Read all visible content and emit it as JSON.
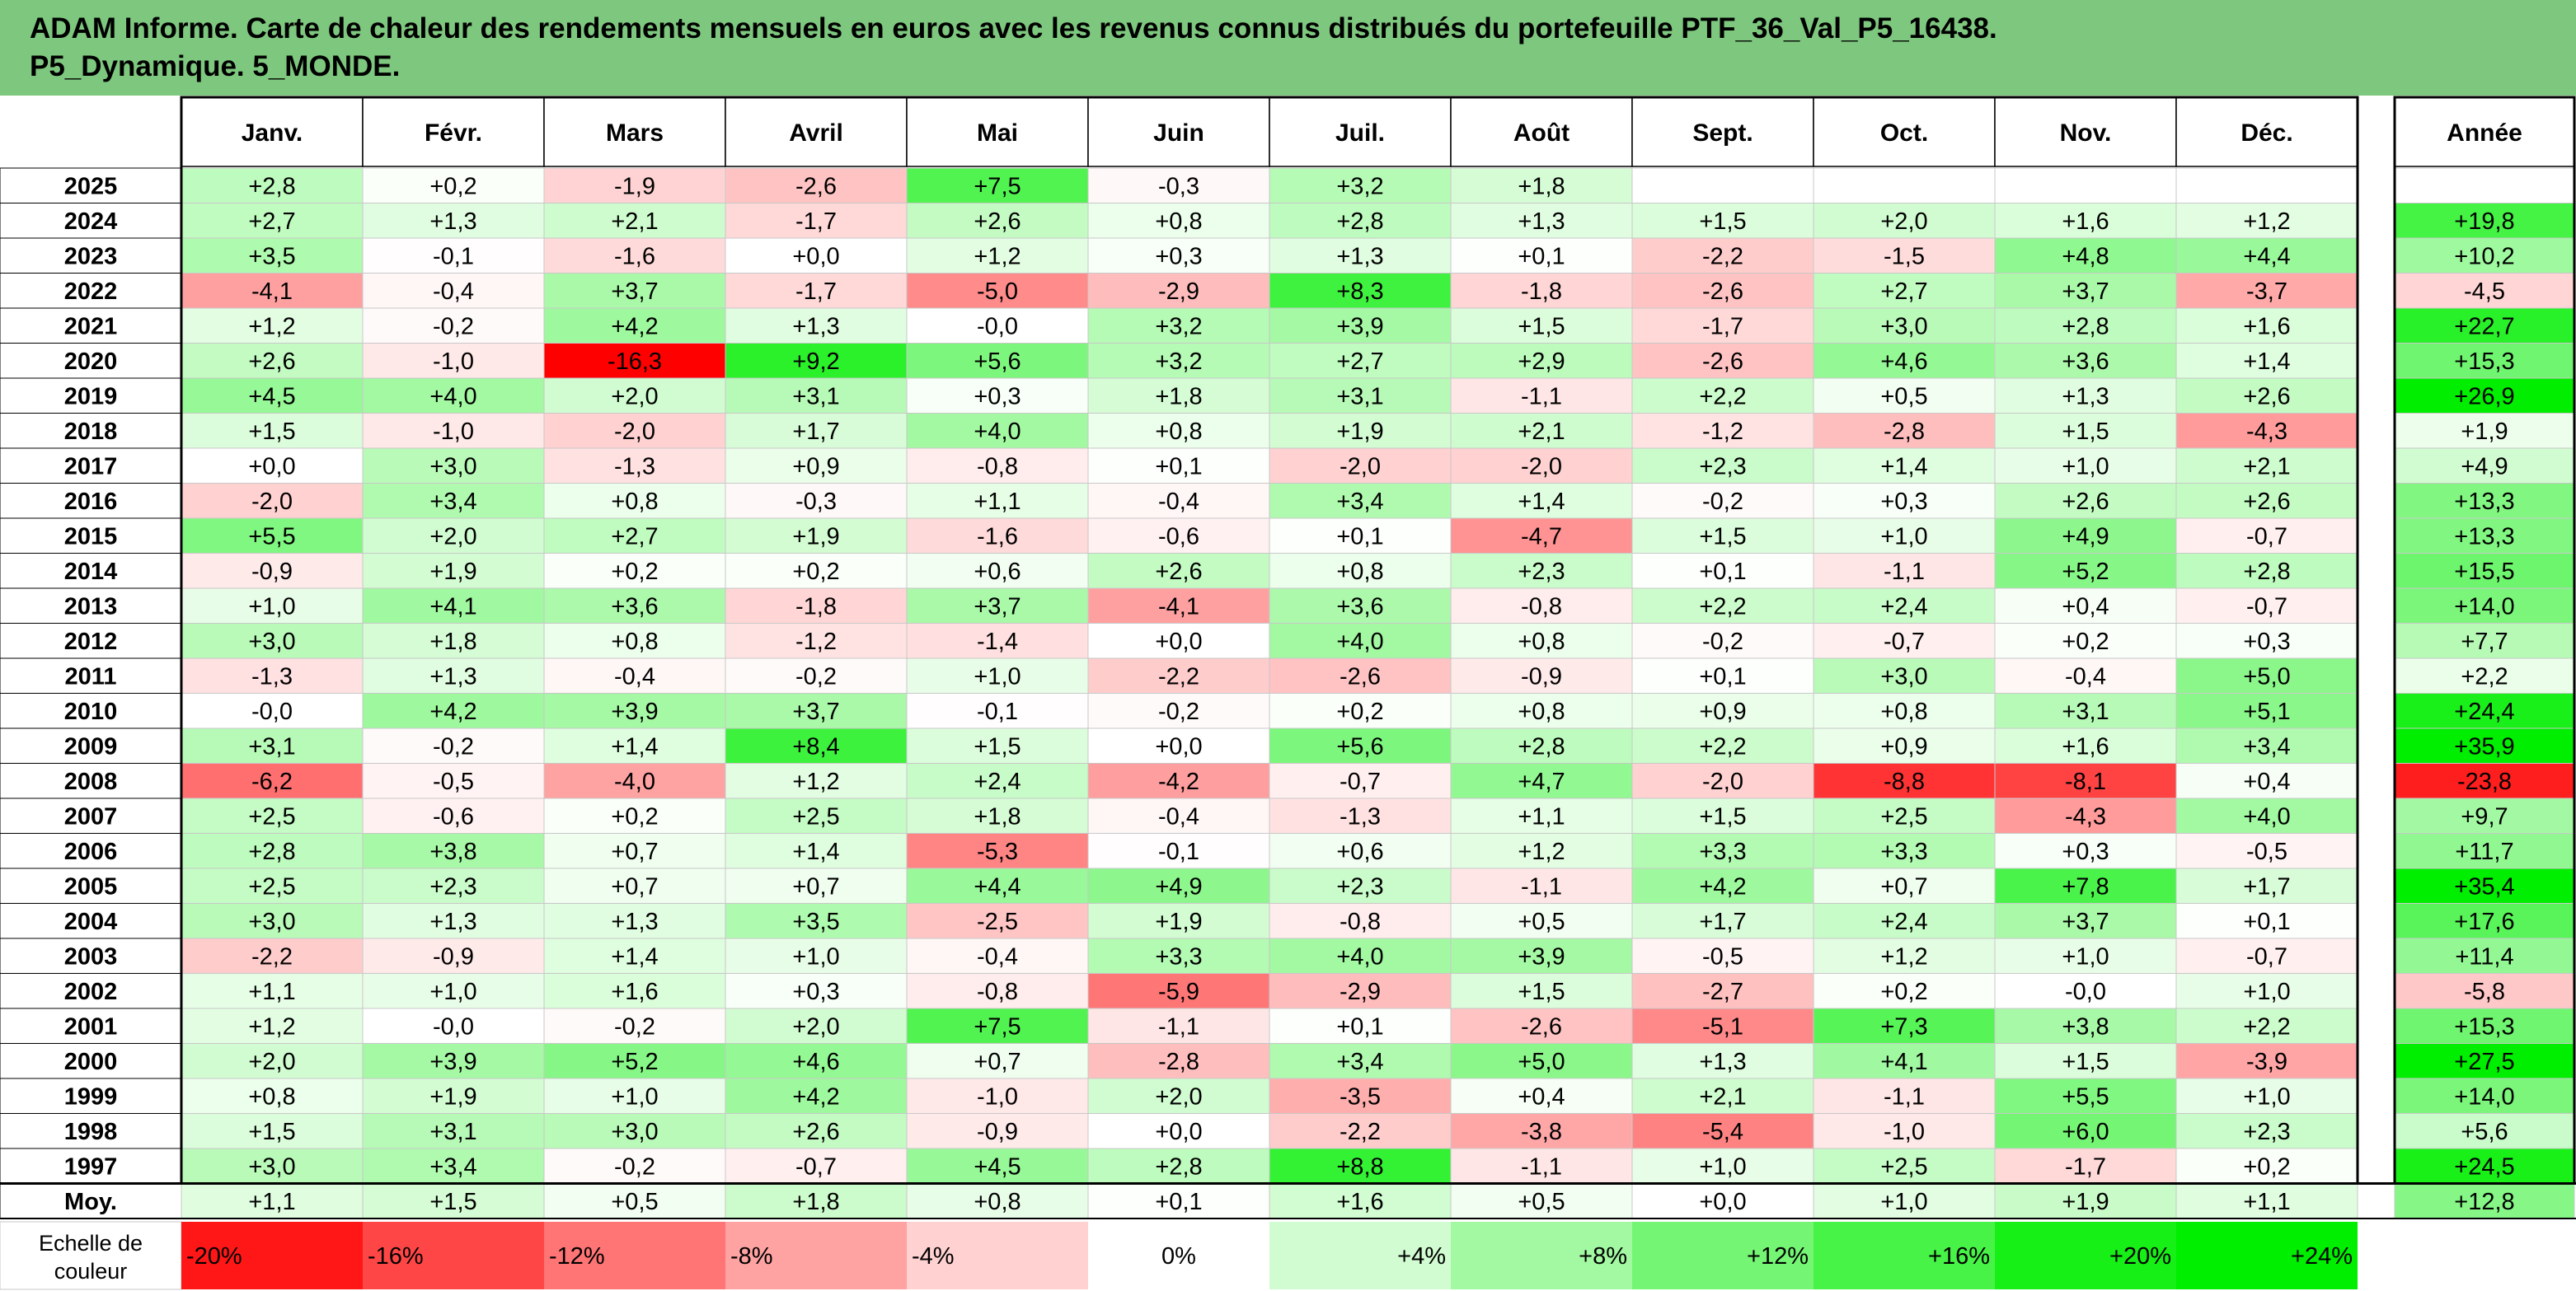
{
  "title_line1": "ADAM Informe. Carte de chaleur des rendements mensuels en euros avec les revenus connus distribués du portefeuille PTF_36_Val_P5_16438.",
  "title_line2": "P5_Dynamique. 5_MONDE.",
  "colors": {
    "title_bg": "#7ec77e",
    "negative": "#ff0000",
    "positive": "#00ee00",
    "neutral": "#ffffff"
  },
  "chart_data": {
    "type": "heatmap",
    "months": [
      "Janv.",
      "Févr.",
      "Mars",
      "Avril",
      "Mai",
      "Juin",
      "Juil.",
      "Août",
      "Sept.",
      "Oct.",
      "Nov.",
      "Déc."
    ],
    "year_label": "Année",
    "average_label": "Moy.",
    "rows": [
      {
        "year": "2025",
        "months": [
          "+2,8",
          "+0,2",
          "-1,9",
          "-2,6",
          "+7,5",
          "-0,3",
          "+3,2",
          "+1,8",
          "",
          "",
          "",
          ""
        ],
        "annual": ""
      },
      {
        "year": "2024",
        "months": [
          "+2,7",
          "+1,3",
          "+2,1",
          "-1,7",
          "+2,6",
          "+0,8",
          "+2,8",
          "+1,3",
          "+1,5",
          "+2,0",
          "+1,6",
          "+1,2"
        ],
        "annual": "+19,8"
      },
      {
        "year": "2023",
        "months": [
          "+3,5",
          "-0,1",
          "-1,6",
          "+0,0",
          "+1,2",
          "+0,3",
          "+1,3",
          "+0,1",
          "-2,2",
          "-1,5",
          "+4,8",
          "+4,4"
        ],
        "annual": "+10,2"
      },
      {
        "year": "2022",
        "months": [
          "-4,1",
          "-0,4",
          "+3,7",
          "-1,7",
          "-5,0",
          "-2,9",
          "+8,3",
          "-1,8",
          "-2,6",
          "+2,7",
          "+3,7",
          "-3,7"
        ],
        "annual": "-4,5"
      },
      {
        "year": "2021",
        "months": [
          "+1,2",
          "-0,2",
          "+4,2",
          "+1,3",
          "-0,0",
          "+3,2",
          "+3,9",
          "+1,5",
          "-1,7",
          "+3,0",
          "+2,8",
          "+1,6"
        ],
        "annual": "+22,7"
      },
      {
        "year": "2020",
        "months": [
          "+2,6",
          "-1,0",
          "-16,3",
          "+9,2",
          "+5,6",
          "+3,2",
          "+2,7",
          "+2,9",
          "-2,6",
          "+4,6",
          "+3,6",
          "+1,4"
        ],
        "annual": "+15,3"
      },
      {
        "year": "2019",
        "months": [
          "+4,5",
          "+4,0",
          "+2,0",
          "+3,1",
          "+0,3",
          "+1,8",
          "+3,1",
          "-1,1",
          "+2,2",
          "+0,5",
          "+1,3",
          "+2,6"
        ],
        "annual": "+26,9"
      },
      {
        "year": "2018",
        "months": [
          "+1,5",
          "-1,0",
          "-2,0",
          "+1,7",
          "+4,0",
          "+0,8",
          "+1,9",
          "+2,1",
          "-1,2",
          "-2,8",
          "+1,5",
          "-4,3"
        ],
        "annual": "+1,9"
      },
      {
        "year": "2017",
        "months": [
          "+0,0",
          "+3,0",
          "-1,3",
          "+0,9",
          "-0,8",
          "+0,1",
          "-2,0",
          "-2,0",
          "+2,3",
          "+1,4",
          "+1,0",
          "+2,1"
        ],
        "annual": "+4,9"
      },
      {
        "year": "2016",
        "months": [
          "-2,0",
          "+3,4",
          "+0,8",
          "-0,3",
          "+1,1",
          "-0,4",
          "+3,4",
          "+1,4",
          "-0,2",
          "+0,3",
          "+2,6",
          "+2,6"
        ],
        "annual": "+13,3"
      },
      {
        "year": "2015",
        "months": [
          "+5,5",
          "+2,0",
          "+2,7",
          "+1,9",
          "-1,6",
          "-0,6",
          "+0,1",
          "-4,7",
          "+1,5",
          "+1,0",
          "+4,9",
          "-0,7"
        ],
        "annual": "+13,3"
      },
      {
        "year": "2014",
        "months": [
          "-0,9",
          "+1,9",
          "+0,2",
          "+0,2",
          "+0,6",
          "+2,6",
          "+0,8",
          "+2,3",
          "+0,1",
          "-1,1",
          "+5,2",
          "+2,8"
        ],
        "annual": "+15,5"
      },
      {
        "year": "2013",
        "months": [
          "+1,0",
          "+4,1",
          "+3,6",
          "-1,8",
          "+3,7",
          "-4,1",
          "+3,6",
          "-0,8",
          "+2,2",
          "+2,4",
          "+0,4",
          "-0,7"
        ],
        "annual": "+14,0"
      },
      {
        "year": "2012",
        "months": [
          "+3,0",
          "+1,8",
          "+0,8",
          "-1,2",
          "-1,4",
          "+0,0",
          "+4,0",
          "+0,8",
          "-0,2",
          "-0,7",
          "+0,2",
          "+0,3"
        ],
        "annual": "+7,7"
      },
      {
        "year": "2011",
        "months": [
          "-1,3",
          "+1,3",
          "-0,4",
          "-0,2",
          "+1,0",
          "-2,2",
          "-2,6",
          "-0,9",
          "+0,1",
          "+3,0",
          "-0,4",
          "+5,0"
        ],
        "annual": "+2,2"
      },
      {
        "year": "2010",
        "months": [
          "-0,0",
          "+4,2",
          "+3,9",
          "+3,7",
          "-0,1",
          "-0,2",
          "+0,2",
          "+0,8",
          "+0,9",
          "+0,8",
          "+3,1",
          "+5,1"
        ],
        "annual": "+24,4"
      },
      {
        "year": "2009",
        "months": [
          "+3,1",
          "-0,2",
          "+1,4",
          "+8,4",
          "+1,5",
          "+0,0",
          "+5,6",
          "+2,8",
          "+2,2",
          "+0,9",
          "+1,6",
          "+3,4"
        ],
        "annual": "+35,9"
      },
      {
        "year": "2008",
        "months": [
          "-6,2",
          "-0,5",
          "-4,0",
          "+1,2",
          "+2,4",
          "-4,2",
          "-0,7",
          "+4,7",
          "-2,0",
          "-8,8",
          "-8,1",
          "+0,4"
        ],
        "annual": "-23,8"
      },
      {
        "year": "2007",
        "months": [
          "+2,5",
          "-0,6",
          "+0,2",
          "+2,5",
          "+1,8",
          "-0,4",
          "-1,3",
          "+1,1",
          "+1,5",
          "+2,5",
          "-4,3",
          "+4,0"
        ],
        "annual": "+9,7"
      },
      {
        "year": "2006",
        "months": [
          "+2,8",
          "+3,8",
          "+0,7",
          "+1,4",
          "-5,3",
          "-0,1",
          "+0,6",
          "+1,2",
          "+3,3",
          "+3,3",
          "+0,3",
          "-0,5"
        ],
        "annual": "+11,7"
      },
      {
        "year": "2005",
        "months": [
          "+2,5",
          "+2,3",
          "+0,7",
          "+0,7",
          "+4,4",
          "+4,9",
          "+2,3",
          "-1,1",
          "+4,2",
          "+0,7",
          "+7,8",
          "+1,7"
        ],
        "annual": "+35,4"
      },
      {
        "year": "2004",
        "months": [
          "+3,0",
          "+1,3",
          "+1,3",
          "+3,5",
          "-2,5",
          "+1,9",
          "-0,8",
          "+0,5",
          "+1,7",
          "+2,4",
          "+3,7",
          "+0,1"
        ],
        "annual": "+17,6"
      },
      {
        "year": "2003",
        "months": [
          "-2,2",
          "-0,9",
          "+1,4",
          "+1,0",
          "-0,4",
          "+3,3",
          "+4,0",
          "+3,9",
          "-0,5",
          "+1,2",
          "+1,0",
          "-0,7"
        ],
        "annual": "+11,4"
      },
      {
        "year": "2002",
        "months": [
          "+1,1",
          "+1,0",
          "+1,6",
          "+0,3",
          "-0,8",
          "-5,9",
          "-2,9",
          "+1,5",
          "-2,7",
          "+0,2",
          "-0,0",
          "+1,0"
        ],
        "annual": "-5,8"
      },
      {
        "year": "2001",
        "months": [
          "+1,2",
          "-0,0",
          "-0,2",
          "+2,0",
          "+7,5",
          "-1,1",
          "+0,1",
          "-2,6",
          "-5,1",
          "+7,3",
          "+3,8",
          "+2,2"
        ],
        "annual": "+15,3"
      },
      {
        "year": "2000",
        "months": [
          "+2,0",
          "+3,9",
          "+5,2",
          "+4,6",
          "+0,7",
          "-2,8",
          "+3,4",
          "+5,0",
          "+1,3",
          "+4,1",
          "+1,5",
          "-3,9"
        ],
        "annual": "+27,5"
      },
      {
        "year": "1999",
        "months": [
          "+0,8",
          "+1,9",
          "+1,0",
          "+4,2",
          "-1,0",
          "+2,0",
          "-3,5",
          "+0,4",
          "+2,1",
          "-1,1",
          "+5,5",
          "+1,0"
        ],
        "annual": "+14,0"
      },
      {
        "year": "1998",
        "months": [
          "+1,5",
          "+3,1",
          "+3,0",
          "+2,6",
          "-0,9",
          "+0,0",
          "-2,2",
          "-3,8",
          "-5,4",
          "-1,0",
          "+6,0",
          "+2,3"
        ],
        "annual": "+5,6"
      },
      {
        "year": "1997",
        "months": [
          "+3,0",
          "+3,4",
          "-0,2",
          "-0,7",
          "+4,5",
          "+2,8",
          "+8,8",
          "-1,1",
          "+1,0",
          "+2,5",
          "-1,7",
          "+0,2"
        ],
        "annual": "+24,5"
      }
    ],
    "average": {
      "months": [
        "+1,1",
        "+1,5",
        "+0,5",
        "+1,8",
        "+0,8",
        "+0,1",
        "+1,6",
        "+0,5",
        "+0,0",
        "+1,0",
        "+1,9",
        "+1,1"
      ],
      "annual": "+12,8"
    },
    "scale_label_line1": "Echelle de",
    "scale_label_line2": "couleur",
    "scale": [
      "-20%",
      "-16%",
      "-12%",
      "-8%",
      "-4%",
      "0%",
      "+4%",
      "+8%",
      "+12%",
      "+16%",
      "+20%",
      "+24%"
    ],
    "scale_values": [
      -20,
      -16,
      -12,
      -8,
      -4,
      0,
      4,
      8,
      12,
      16,
      20,
      24
    ]
  }
}
